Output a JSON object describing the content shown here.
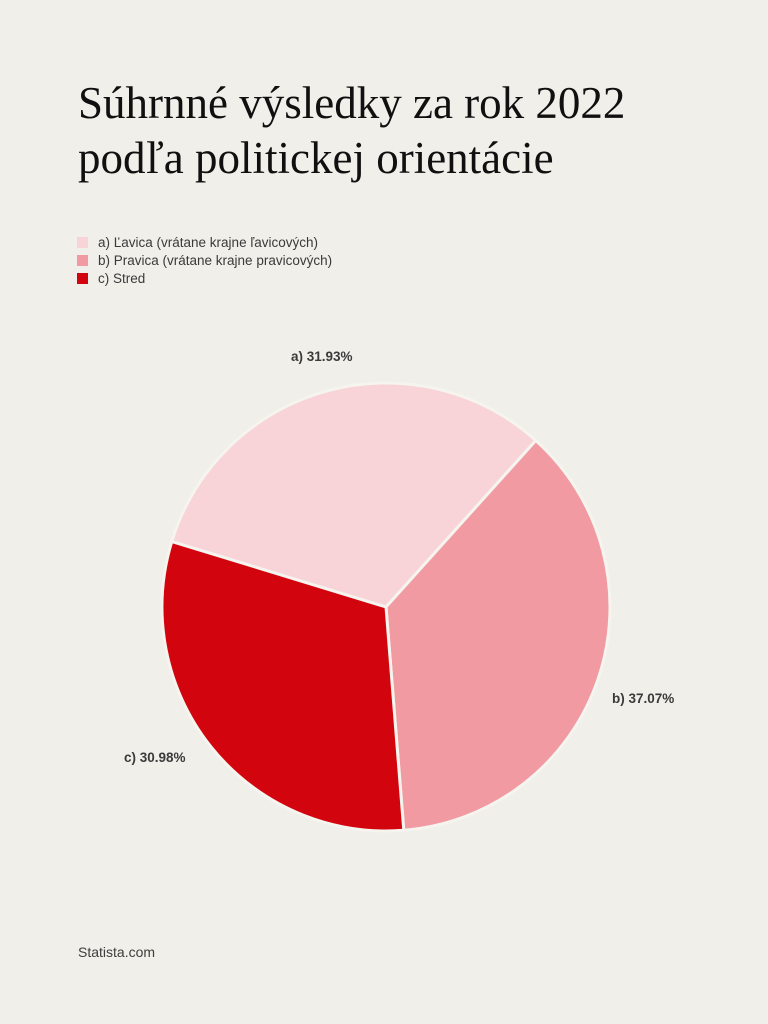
{
  "title": {
    "line1": "Súhrnné výsledky za rok 2022",
    "line2": "podľa politickej orientácie"
  },
  "footer": {
    "source": "Statista.com"
  },
  "colors": {
    "background": "#f0efe9",
    "title_text": "#101010",
    "label_text": "#3a3a3a",
    "slice_gap": "#f5f4ef"
  },
  "chart_data": {
    "type": "pie",
    "title": "Súhrnné výsledky za rok 2022 podľa politickej orientácie",
    "legend_position": "top-left",
    "start_angle_deg_clockwise_from_top": -73,
    "slices": [
      {
        "key": "a",
        "label": "a) Ľavica (vrátane krajne ľavicových)",
        "value_pct": 31.93,
        "display_label": "a) 31.93%",
        "color": "#f8d3d7"
      },
      {
        "key": "b",
        "label": "b) Pravica (vrátane krajne pravicových)",
        "value_pct": 37.07,
        "display_label": "b) 37.07%",
        "color": "#f29aa2"
      },
      {
        "key": "c",
        "label": "c) Stred",
        "value_pct": 30.98,
        "display_label": "c) 30.98%",
        "color": "#d2050e"
      }
    ],
    "source": "Statista.com"
  }
}
